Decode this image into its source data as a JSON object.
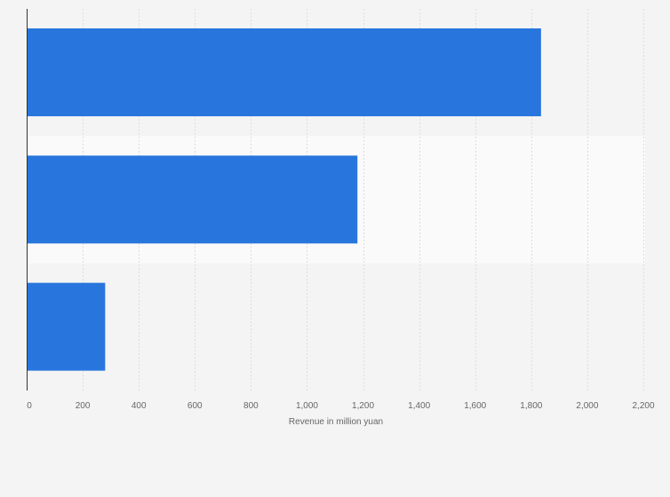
{
  "chart_data": {
    "type": "bar",
    "orientation": "horizontal",
    "categories": [
      "",
      "",
      ""
    ],
    "values": [
      1835,
      1180,
      280
    ],
    "title": "",
    "xlabel": "Revenue in million yuan",
    "ylabel": "",
    "xlim": [
      0,
      2200
    ],
    "ticks": [
      0,
      200,
      400,
      600,
      800,
      1000,
      1200,
      1400,
      1600,
      1800,
      2000,
      2200
    ],
    "tick_labels": [
      "0",
      "200",
      "400",
      "600",
      "800",
      "1,000",
      "1,200",
      "1,400",
      "1,600",
      "1,800",
      "2,000",
      "2,200"
    ],
    "grid": true,
    "legend": "none",
    "colors": {
      "bar": "#2876dd",
      "page_background": "#f4f4f4",
      "band_light": "#fafafa",
      "gridline": "#dddddd",
      "axis_line": "#333333",
      "text": "#666666"
    }
  }
}
